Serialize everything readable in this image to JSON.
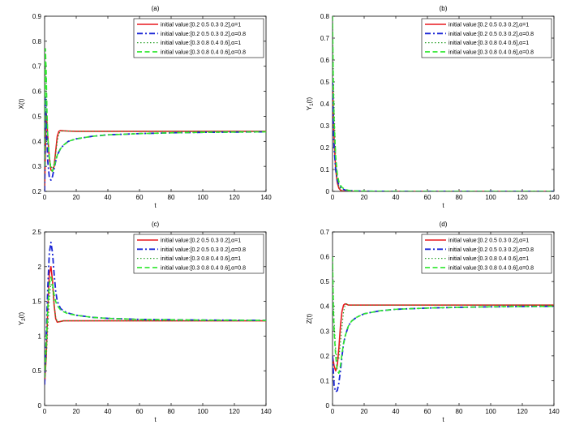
{
  "chart_data": [
    {
      "type": "line",
      "title": "(a)",
      "xlabel": "t",
      "ylabel": "X(t)",
      "xlim": [
        0,
        140
      ],
      "ylim": [
        0.2,
        0.9
      ],
      "xticks": [
        "0",
        "20",
        "40",
        "60",
        "80",
        "100",
        "120",
        "140"
      ],
      "yticks": [
        "0.2",
        "0.3",
        "0.4",
        "0.5",
        "0.6",
        "0.7",
        "0.8",
        "0.9"
      ],
      "legend_position": "top-right",
      "series": [
        {
          "name": "initial value:[0.2 0.5 0.3 0.2],α=1",
          "color": "#e8191e",
          "style": "solid",
          "x": [
            0,
            1,
            2,
            3,
            4,
            5,
            6,
            7,
            8,
            9,
            10,
            12,
            15,
            20,
            30,
            50,
            80,
            100,
            140
          ],
          "y": [
            0.2,
            0.52,
            0.42,
            0.33,
            0.285,
            0.28,
            0.3,
            0.36,
            0.42,
            0.44,
            0.443,
            0.442,
            0.441,
            0.44,
            0.44,
            0.44,
            0.44,
            0.44,
            0.44
          ]
        },
        {
          "name": "initial value:[0.2 0.5 0.3 0.2],α=0.8",
          "color": "#1a26d6",
          "style": "dashdot",
          "x": [
            0,
            0.5,
            1,
            2,
            3,
            4,
            5,
            6,
            7,
            8,
            10,
            12,
            15,
            20,
            30,
            40,
            60,
            80,
            100,
            120,
            140
          ],
          "y": [
            0.2,
            0.58,
            0.48,
            0.32,
            0.255,
            0.245,
            0.26,
            0.29,
            0.32,
            0.345,
            0.37,
            0.385,
            0.4,
            0.41,
            0.42,
            0.426,
            0.431,
            0.434,
            0.436,
            0.437,
            0.438
          ]
        },
        {
          "name": "initial value:[0.3 0.8 0.4 0.6],α=1",
          "color": "#2aa12a",
          "style": "dotted",
          "x": [
            0,
            0.5,
            1,
            1.5,
            2,
            3,
            4,
            5,
            6,
            7,
            8,
            9,
            10,
            12,
            15,
            20,
            50,
            100,
            140
          ],
          "y": [
            0.3,
            0.72,
            0.64,
            0.5,
            0.42,
            0.34,
            0.3,
            0.29,
            0.31,
            0.35,
            0.4,
            0.43,
            0.44,
            0.442,
            0.441,
            0.44,
            0.44,
            0.44,
            0.44
          ]
        },
        {
          "name": "initial value:[0.3 0.8 0.4 0.6],α=0.8",
          "color": "#2ee82e",
          "style": "dashed",
          "x": [
            0,
            0.5,
            1,
            1.5,
            2,
            3,
            4,
            5,
            6,
            7,
            8,
            10,
            12,
            15,
            20,
            30,
            40,
            60,
            80,
            100,
            120,
            140
          ],
          "y": [
            0.3,
            0.77,
            0.68,
            0.52,
            0.42,
            0.33,
            0.29,
            0.28,
            0.3,
            0.32,
            0.345,
            0.37,
            0.385,
            0.4,
            0.41,
            0.42,
            0.426,
            0.431,
            0.434,
            0.436,
            0.437,
            0.438
          ]
        }
      ]
    },
    {
      "type": "line",
      "title": "(b)",
      "xlabel": "t",
      "ylabel": "Y1(t)",
      "xlim": [
        0,
        140
      ],
      "ylim": [
        0,
        0.8
      ],
      "xticks": [
        "0",
        "20",
        "40",
        "60",
        "80",
        "100",
        "120",
        "140"
      ],
      "yticks": [
        "0",
        "0.1",
        "0.2",
        "0.3",
        "0.4",
        "0.5",
        "0.6",
        "0.7",
        "0.8"
      ],
      "legend_position": "top-right",
      "series": [
        {
          "name": "initial value:[0.2 0.5 0.3 0.2],α=1",
          "color": "#e8191e",
          "style": "solid",
          "x": [
            0,
            0.5,
            1,
            2,
            3,
            4,
            5,
            6,
            8,
            10,
            20,
            140
          ],
          "y": [
            0.5,
            0.36,
            0.24,
            0.1,
            0.04,
            0.015,
            0.006,
            0.002,
            0.001,
            0.0005,
            0,
            0
          ]
        },
        {
          "name": "initial value:[0.2 0.5 0.3 0.2],α=0.8",
          "color": "#1a26d6",
          "style": "dashdot",
          "x": [
            0,
            0.5,
            1,
            2,
            3,
            4,
            5,
            6,
            8,
            10,
            15,
            20,
            40,
            140
          ],
          "y": [
            0.5,
            0.3,
            0.2,
            0.1,
            0.05,
            0.03,
            0.02,
            0.012,
            0.006,
            0.004,
            0.002,
            0.001,
            0,
            0
          ]
        },
        {
          "name": "initial value:[0.3 0.8 0.4 0.6],α=1",
          "color": "#2aa12a",
          "style": "dotted",
          "x": [
            0,
            0.5,
            1,
            2,
            3,
            4,
            5,
            6,
            8,
            10,
            20,
            140
          ],
          "y": [
            0.8,
            0.55,
            0.38,
            0.16,
            0.06,
            0.024,
            0.01,
            0.004,
            0.001,
            0.0005,
            0,
            0
          ]
        },
        {
          "name": "initial value:[0.3 0.8 0.4 0.6],α=0.8",
          "color": "#2ee82e",
          "style": "dashed",
          "x": [
            0,
            0.5,
            1,
            2,
            3,
            4,
            5,
            6,
            8,
            10,
            15,
            20,
            40,
            140
          ],
          "y": [
            0.8,
            0.48,
            0.32,
            0.16,
            0.08,
            0.045,
            0.028,
            0.018,
            0.009,
            0.005,
            0.002,
            0.001,
            0,
            0
          ]
        }
      ]
    },
    {
      "type": "line",
      "title": "(c)",
      "xlabel": "t",
      "ylabel": "Y2(t)",
      "xlim": [
        0,
        140
      ],
      "ylim": [
        0,
        2.5
      ],
      "xticks": [
        "0",
        "20",
        "40",
        "60",
        "80",
        "100",
        "120",
        "140"
      ],
      "yticks": [
        "0",
        "0.5",
        "1",
        "1.5",
        "2",
        "2.5"
      ],
      "legend_position": "top-right",
      "series": [
        {
          "name": "initial value:[0.2 0.5 0.3 0.2],α=1",
          "color": "#e8191e",
          "style": "solid",
          "x": [
            0,
            1,
            2,
            3,
            4,
            5,
            6,
            7,
            8,
            10,
            12,
            15,
            20,
            140
          ],
          "y": [
            0.3,
            0.7,
            1.4,
            1.9,
            2.0,
            1.8,
            1.45,
            1.25,
            1.2,
            1.21,
            1.22,
            1.22,
            1.22,
            1.22
          ]
        },
        {
          "name": "initial value:[0.2 0.5 0.3 0.2],α=0.8",
          "color": "#1a26d6",
          "style": "dashdot",
          "x": [
            0,
            1,
            2,
            3,
            4,
            5,
            6,
            7,
            8,
            10,
            12,
            15,
            20,
            30,
            40,
            60,
            80,
            100,
            120,
            140
          ],
          "y": [
            0.3,
            1.0,
            1.7,
            2.2,
            2.35,
            2.2,
            1.9,
            1.65,
            1.5,
            1.4,
            1.36,
            1.33,
            1.3,
            1.27,
            1.255,
            1.24,
            1.235,
            1.23,
            1.228,
            1.225
          ]
        },
        {
          "name": "initial value:[0.3 0.8 0.4 0.6],α=1",
          "color": "#2aa12a",
          "style": "dotted",
          "x": [
            0,
            1,
            2,
            3,
            4,
            5,
            6,
            7,
            8,
            10,
            12,
            15,
            20,
            140
          ],
          "y": [
            0.4,
            0.65,
            1.1,
            1.55,
            1.75,
            1.7,
            1.45,
            1.27,
            1.21,
            1.21,
            1.22,
            1.22,
            1.22,
            1.22
          ]
        },
        {
          "name": "initial value:[0.3 0.8 0.4 0.6],α=0.8",
          "color": "#2ee82e",
          "style": "dashed",
          "x": [
            0,
            1,
            2,
            3,
            4,
            5,
            6,
            7,
            8,
            10,
            12,
            15,
            20,
            30,
            40,
            60,
            80,
            100,
            120,
            140
          ],
          "y": [
            0.4,
            0.9,
            1.4,
            1.75,
            1.85,
            1.75,
            1.6,
            1.5,
            1.44,
            1.38,
            1.35,
            1.32,
            1.3,
            1.27,
            1.255,
            1.24,
            1.235,
            1.23,
            1.228,
            1.225
          ]
        }
      ]
    },
    {
      "type": "line",
      "title": "(d)",
      "xlabel": "t",
      "ylabel": "Z(t)",
      "xlim": [
        0,
        140
      ],
      "ylim": [
        0,
        0.7
      ],
      "xticks": [
        "0",
        "20",
        "40",
        "60",
        "80",
        "100",
        "120",
        "140"
      ],
      "yticks": [
        "0",
        "0.1",
        "0.2",
        "0.3",
        "0.4",
        "0.5",
        "0.6",
        "0.7"
      ],
      "legend_position": "top-right",
      "series": [
        {
          "name": "initial value:[0.2 0.5 0.3 0.2],α=1",
          "color": "#e8191e",
          "style": "solid",
          "x": [
            0,
            1,
            2,
            3,
            4,
            5,
            6,
            7,
            8,
            9,
            10,
            12,
            15,
            20,
            140
          ],
          "y": [
            0.2,
            0.16,
            0.14,
            0.16,
            0.23,
            0.32,
            0.38,
            0.405,
            0.41,
            0.408,
            0.405,
            0.405,
            0.405,
            0.405,
            0.405
          ]
        },
        {
          "name": "initial value:[0.2 0.5 0.3 0.2],α=0.8",
          "color": "#1a26d6",
          "style": "dashdot",
          "x": [
            0,
            1,
            2,
            3,
            4,
            5,
            6,
            7,
            8,
            10,
            12,
            15,
            20,
            30,
            40,
            60,
            80,
            100,
            120,
            140
          ],
          "y": [
            0.2,
            0.08,
            0.055,
            0.06,
            0.09,
            0.14,
            0.2,
            0.25,
            0.28,
            0.32,
            0.34,
            0.355,
            0.37,
            0.382,
            0.388,
            0.393,
            0.396,
            0.398,
            0.399,
            0.4
          ]
        },
        {
          "name": "initial value:[0.3 0.8 0.4 0.6],α=1",
          "color": "#2aa12a",
          "style": "dotted",
          "x": [
            0,
            0.5,
            1,
            2,
            3,
            4,
            5,
            6,
            7,
            8,
            9,
            10,
            12,
            15,
            20,
            140
          ],
          "y": [
            0.6,
            0.45,
            0.34,
            0.22,
            0.18,
            0.19,
            0.25,
            0.32,
            0.38,
            0.405,
            0.41,
            0.406,
            0.405,
            0.405,
            0.405,
            0.405
          ]
        },
        {
          "name": "initial value:[0.3 0.8 0.4 0.6],α=0.8",
          "color": "#2ee82e",
          "style": "dashed",
          "x": [
            0,
            0.5,
            1,
            2,
            3,
            4,
            5,
            6,
            7,
            8,
            10,
            12,
            15,
            20,
            30,
            40,
            60,
            80,
            100,
            120,
            140
          ],
          "y": [
            0.6,
            0.4,
            0.3,
            0.2,
            0.14,
            0.13,
            0.16,
            0.21,
            0.25,
            0.28,
            0.32,
            0.34,
            0.355,
            0.37,
            0.382,
            0.388,
            0.393,
            0.396,
            0.398,
            0.399,
            0.4
          ]
        }
      ]
    }
  ]
}
